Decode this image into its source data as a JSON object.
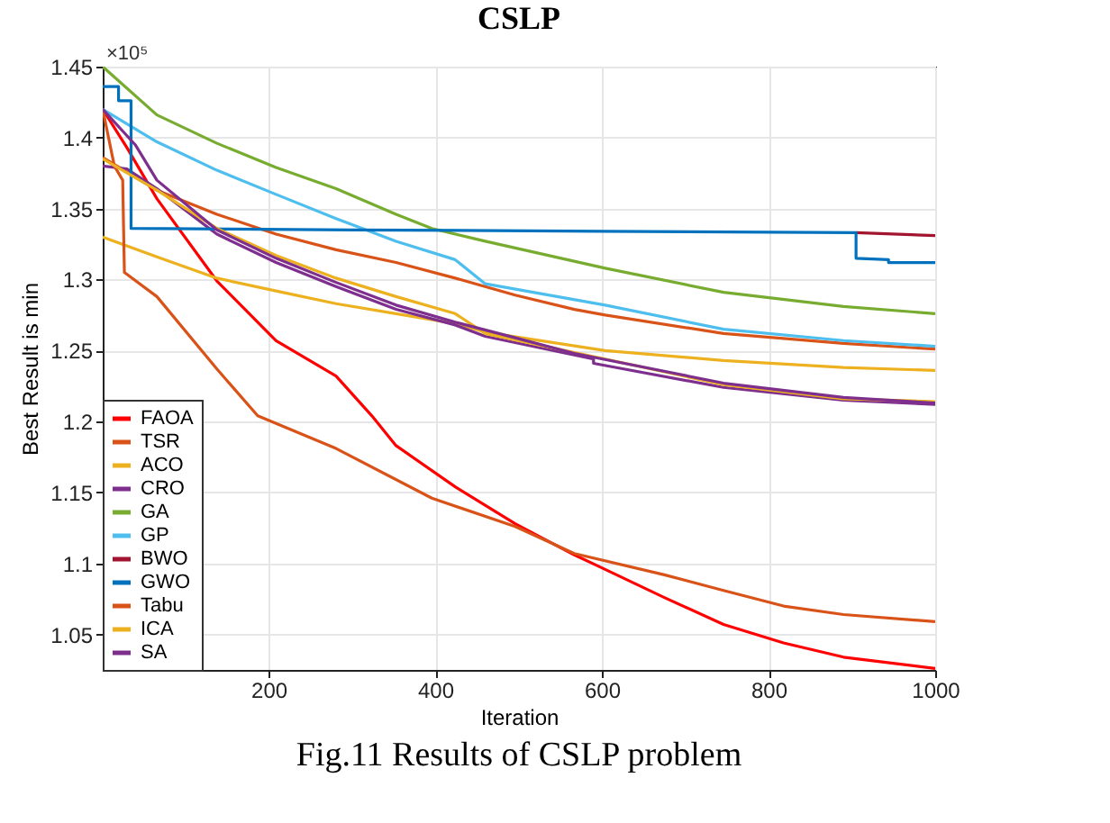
{
  "chart_data": {
    "type": "line",
    "title": "CSLP",
    "xlabel": "Iteration",
    "ylabel": "Best  Result is min",
    "annotations": [
      "×10⁵",
      "Fig.11 Results of CSLP problem"
    ],
    "xlim": [
      1,
      1000
    ],
    "xticks": [
      200,
      400,
      600,
      800,
      1000
    ],
    "ylim": [
      1.025,
      1.45
    ],
    "yticks": [
      1.05,
      1.1,
      1.15,
      1.2,
      1.25,
      1.3,
      1.35,
      1.4,
      1.45
    ],
    "grid": true,
    "legend": "bottom left",
    "marker": "none",
    "line_style": "solid",
    "series": [
      {
        "name": "FAOA",
        "color": "#ff0000",
        "x": [
          1,
          30,
          66,
          138,
          209,
          281,
          324,
          353,
          424,
          496,
          567,
          596,
          675,
          746,
          818,
          890,
          1000
        ],
        "values": [
          1.42,
          1.393,
          1.357,
          1.299,
          1.257,
          1.232,
          1.204,
          1.183,
          1.154,
          1.128,
          1.106,
          1.098,
          1.076,
          1.057,
          1.044,
          1.034,
          1.026
        ]
      },
      {
        "name": "TSR",
        "color": "#d95319",
        "x": [
          1,
          66,
          138,
          209,
          281,
          353,
          424,
          496,
          567,
          604,
          746,
          890,
          1000
        ],
        "values": [
          1.386,
          1.363,
          1.346,
          1.332,
          1.321,
          1.312,
          1.301,
          1.289,
          1.279,
          1.275,
          1.262,
          1.255,
          1.251
        ]
      },
      {
        "name": "ACO",
        "color": "#edb120",
        "x": [
          1,
          66,
          138,
          209,
          281,
          353,
          424,
          460,
          604,
          746,
          890,
          1000
        ],
        "values": [
          1.33,
          1.316,
          1.301,
          1.292,
          1.283,
          1.276,
          1.269,
          1.263,
          1.25,
          1.243,
          1.238,
          1.236
        ]
      },
      {
        "name": "CRO",
        "color": "#7e2f8e",
        "x": [
          1,
          30,
          66,
          138,
          209,
          281,
          353,
          424,
          460,
          590,
          590,
          746,
          890,
          1000
        ],
        "values": [
          1.38,
          1.378,
          1.364,
          1.332,
          1.312,
          1.295,
          1.279,
          1.268,
          1.26,
          1.244,
          1.241,
          1.224,
          1.215,
          1.212
        ]
      },
      {
        "name": "GA",
        "color": "#77ac30",
        "x": [
          1,
          66,
          138,
          209,
          281,
          353,
          396,
          460,
          604,
          746,
          890,
          1000
        ],
        "values": [
          1.45,
          1.416,
          1.396,
          1.379,
          1.364,
          1.346,
          1.336,
          1.327,
          1.308,
          1.291,
          1.281,
          1.276
        ]
      },
      {
        "name": "GP",
        "color": "#4dbeee",
        "x": [
          1,
          66,
          138,
          209,
          281,
          353,
          424,
          460,
          604,
          746,
          890,
          1000
        ],
        "values": [
          1.42,
          1.397,
          1.377,
          1.36,
          1.343,
          1.327,
          1.314,
          1.297,
          1.282,
          1.265,
          1.257,
          1.253
        ]
      },
      {
        "name": "BWO",
        "color": "#a2142f",
        "x": [
          905,
          1000
        ],
        "values": [
          1.333,
          1.331
        ]
      },
      {
        "name": "GWO",
        "color": "#0072bd",
        "x": [
          1,
          20,
          20,
          35,
          35,
          300,
          600,
          905,
          905,
          944,
          944,
          1000
        ],
        "values": [
          1.436,
          1.436,
          1.426,
          1.426,
          1.336,
          1.335,
          1.334,
          1.333,
          1.315,
          1.314,
          1.312,
          1.312
        ]
      },
      {
        "name": "Tabu",
        "color": "#d95319",
        "x": [
          1,
          15,
          25,
          27,
          66,
          138,
          187,
          281,
          396,
          496,
          567,
          675,
          746,
          818,
          890,
          1000
        ],
        "values": [
          1.42,
          1.38,
          1.37,
          1.305,
          1.288,
          1.237,
          1.204,
          1.181,
          1.146,
          1.126,
          1.107,
          1.092,
          1.081,
          1.07,
          1.064,
          1.059
        ]
      },
      {
        "name": "ICA",
        "color": "#edb120",
        "x": [
          1,
          66,
          138,
          209,
          281,
          353,
          424,
          460,
          604,
          746,
          890,
          1000
        ],
        "values": [
          1.385,
          1.363,
          1.336,
          1.317,
          1.301,
          1.288,
          1.276,
          1.262,
          1.244,
          1.226,
          1.216,
          1.214
        ]
      },
      {
        "name": "SA",
        "color": "#7e2f8e",
        "x": [
          1,
          40,
          66,
          138,
          209,
          281,
          353,
          424,
          496,
          567,
          746,
          890,
          1000
        ],
        "values": [
          1.42,
          1.395,
          1.37,
          1.335,
          1.315,
          1.298,
          1.282,
          1.27,
          1.259,
          1.248,
          1.227,
          1.217,
          1.213
        ]
      }
    ]
  }
}
